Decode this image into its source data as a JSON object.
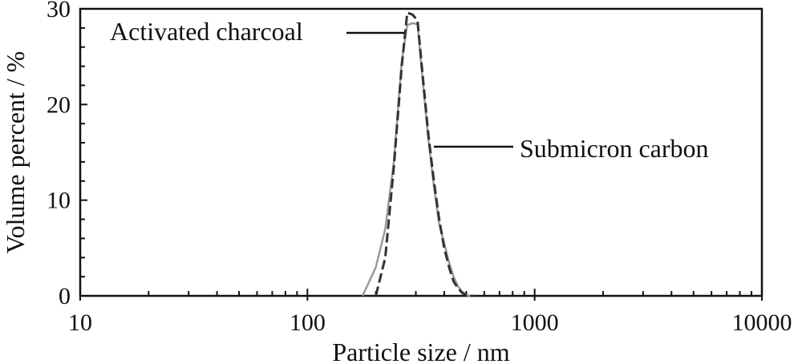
{
  "chart_data": {
    "type": "line",
    "title": "",
    "xlabel": "Particle size / nm",
    "ylabel": "Volume percent / %",
    "xscale": "log",
    "xlim": [
      10,
      10000
    ],
    "ylim": [
      0,
      30
    ],
    "xticks": [
      10,
      100,
      1000,
      10000
    ],
    "xtick_labels": [
      "10",
      "100",
      "1000",
      "10000"
    ],
    "yticks": [
      0,
      10,
      20,
      30
    ],
    "ytick_labels": [
      "0",
      "10",
      "20",
      "30"
    ],
    "grid": false,
    "legend": "none",
    "series": [
      {
        "name": "Activated charcoal",
        "color": "#333333",
        "style": "dashed",
        "x": [
          200,
          220,
          240,
          260,
          275,
          290,
          305,
          320,
          340,
          360,
          380,
          400,
          420,
          440,
          460,
          480,
          500,
          520,
          540
        ],
        "y": [
          0.0,
          4.0,
          13.5,
          24.0,
          29.6,
          29.4,
          28.8,
          23.5,
          17.0,
          12.0,
          8.0,
          5.0,
          3.0,
          1.5,
          0.8,
          0.3,
          0.1,
          0.0,
          0.0
        ]
      },
      {
        "name": "Submicron carbon",
        "color": "#9a9a9a",
        "style": "solid",
        "x": [
          175,
          200,
          220,
          240,
          260,
          275,
          290,
          305,
          320,
          340,
          360,
          380,
          400,
          420,
          440,
          460,
          480,
          500,
          520
        ],
        "y": [
          0.0,
          3.0,
          7.0,
          14.0,
          24.5,
          28.3,
          28.5,
          28.4,
          23.0,
          16.5,
          11.5,
          7.5,
          5.5,
          3.5,
          2.0,
          1.0,
          0.4,
          0.1,
          0.0
        ]
      }
    ],
    "annotations": [
      {
        "text": "Activated charcoal",
        "series": "Activated charcoal"
      },
      {
        "text": "Submicron carbon",
        "series": "Submicron carbon"
      }
    ]
  }
}
